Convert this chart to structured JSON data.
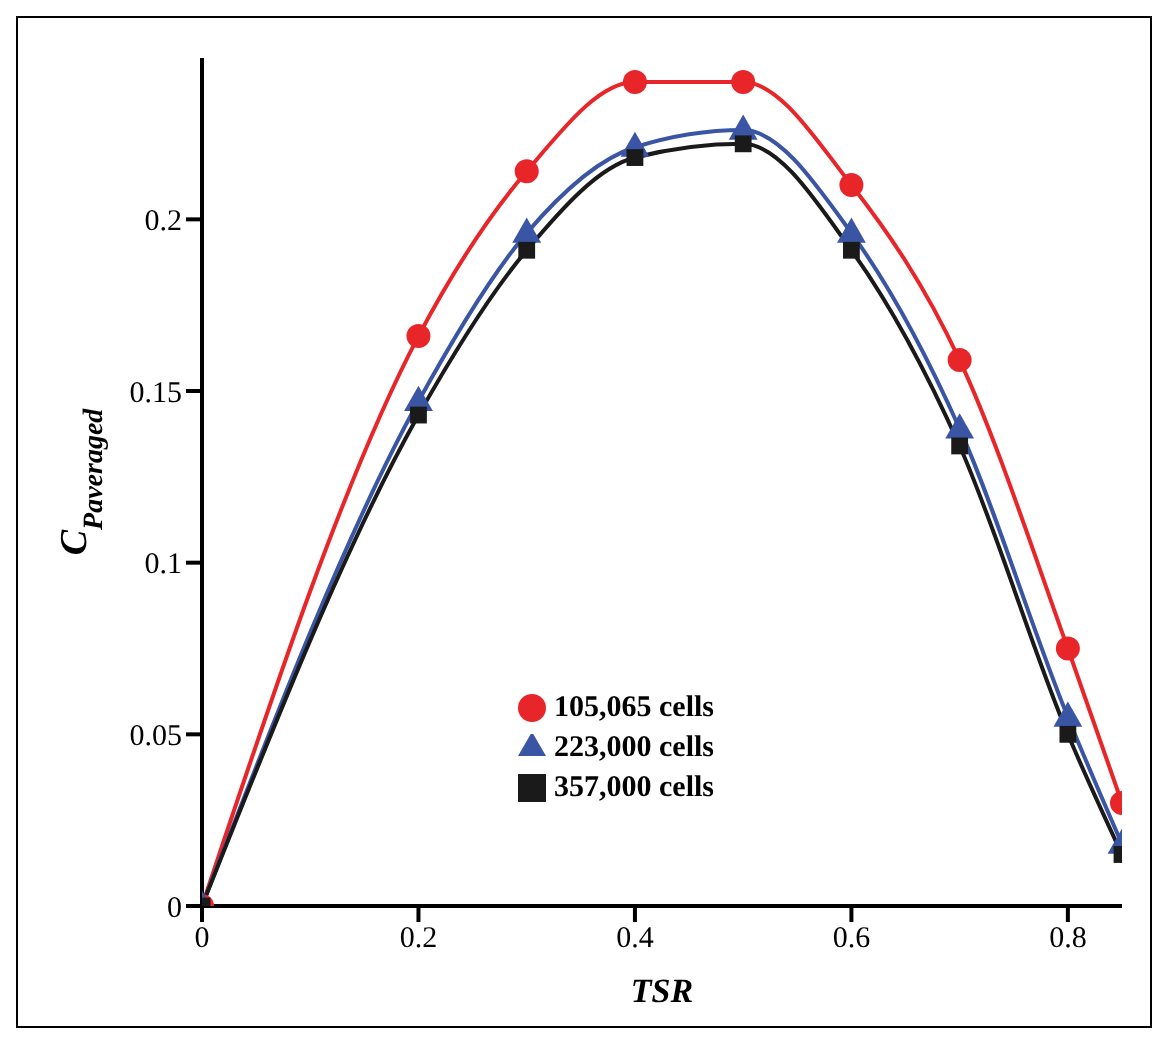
{
  "chart_data": {
    "type": "line",
    "xlabel": "TSR",
    "ylabel": "C$_{Paveraged}$",
    "x": [
      0,
      0.2,
      0.3,
      0.4,
      0.5,
      0.6,
      0.7,
      0.8,
      0.85
    ],
    "xlim": [
      0,
      0.85
    ],
    "xticks": [
      0,
      0.2,
      0.4,
      0.6,
      0.8
    ],
    "ylim": [
      0,
      0.247
    ],
    "yticks": [
      0,
      0.05,
      0.1,
      0.15,
      0.2
    ],
    "grid": false,
    "legend": "bottom",
    "line_style": "solid",
    "series": [
      {
        "name": "105,065 cells",
        "color": "#e8262a",
        "marker": "circle",
        "values": [
          0,
          0.166,
          0.214,
          0.24,
          0.24,
          0.21,
          0.159,
          0.075,
          0.03
        ]
      },
      {
        "name": "223,000 cells",
        "color": "#3a55a4",
        "marker": "triangle",
        "values": [
          0,
          0.147,
          0.196,
          0.221,
          0.226,
          0.196,
          0.139,
          0.055,
          0.018
        ]
      },
      {
        "name": "357,000 cells",
        "color": "#1a1a1a",
        "marker": "square",
        "values": [
          0,
          0.143,
          0.191,
          0.218,
          0.222,
          0.191,
          0.134,
          0.05,
          0.015
        ]
      }
    ]
  }
}
